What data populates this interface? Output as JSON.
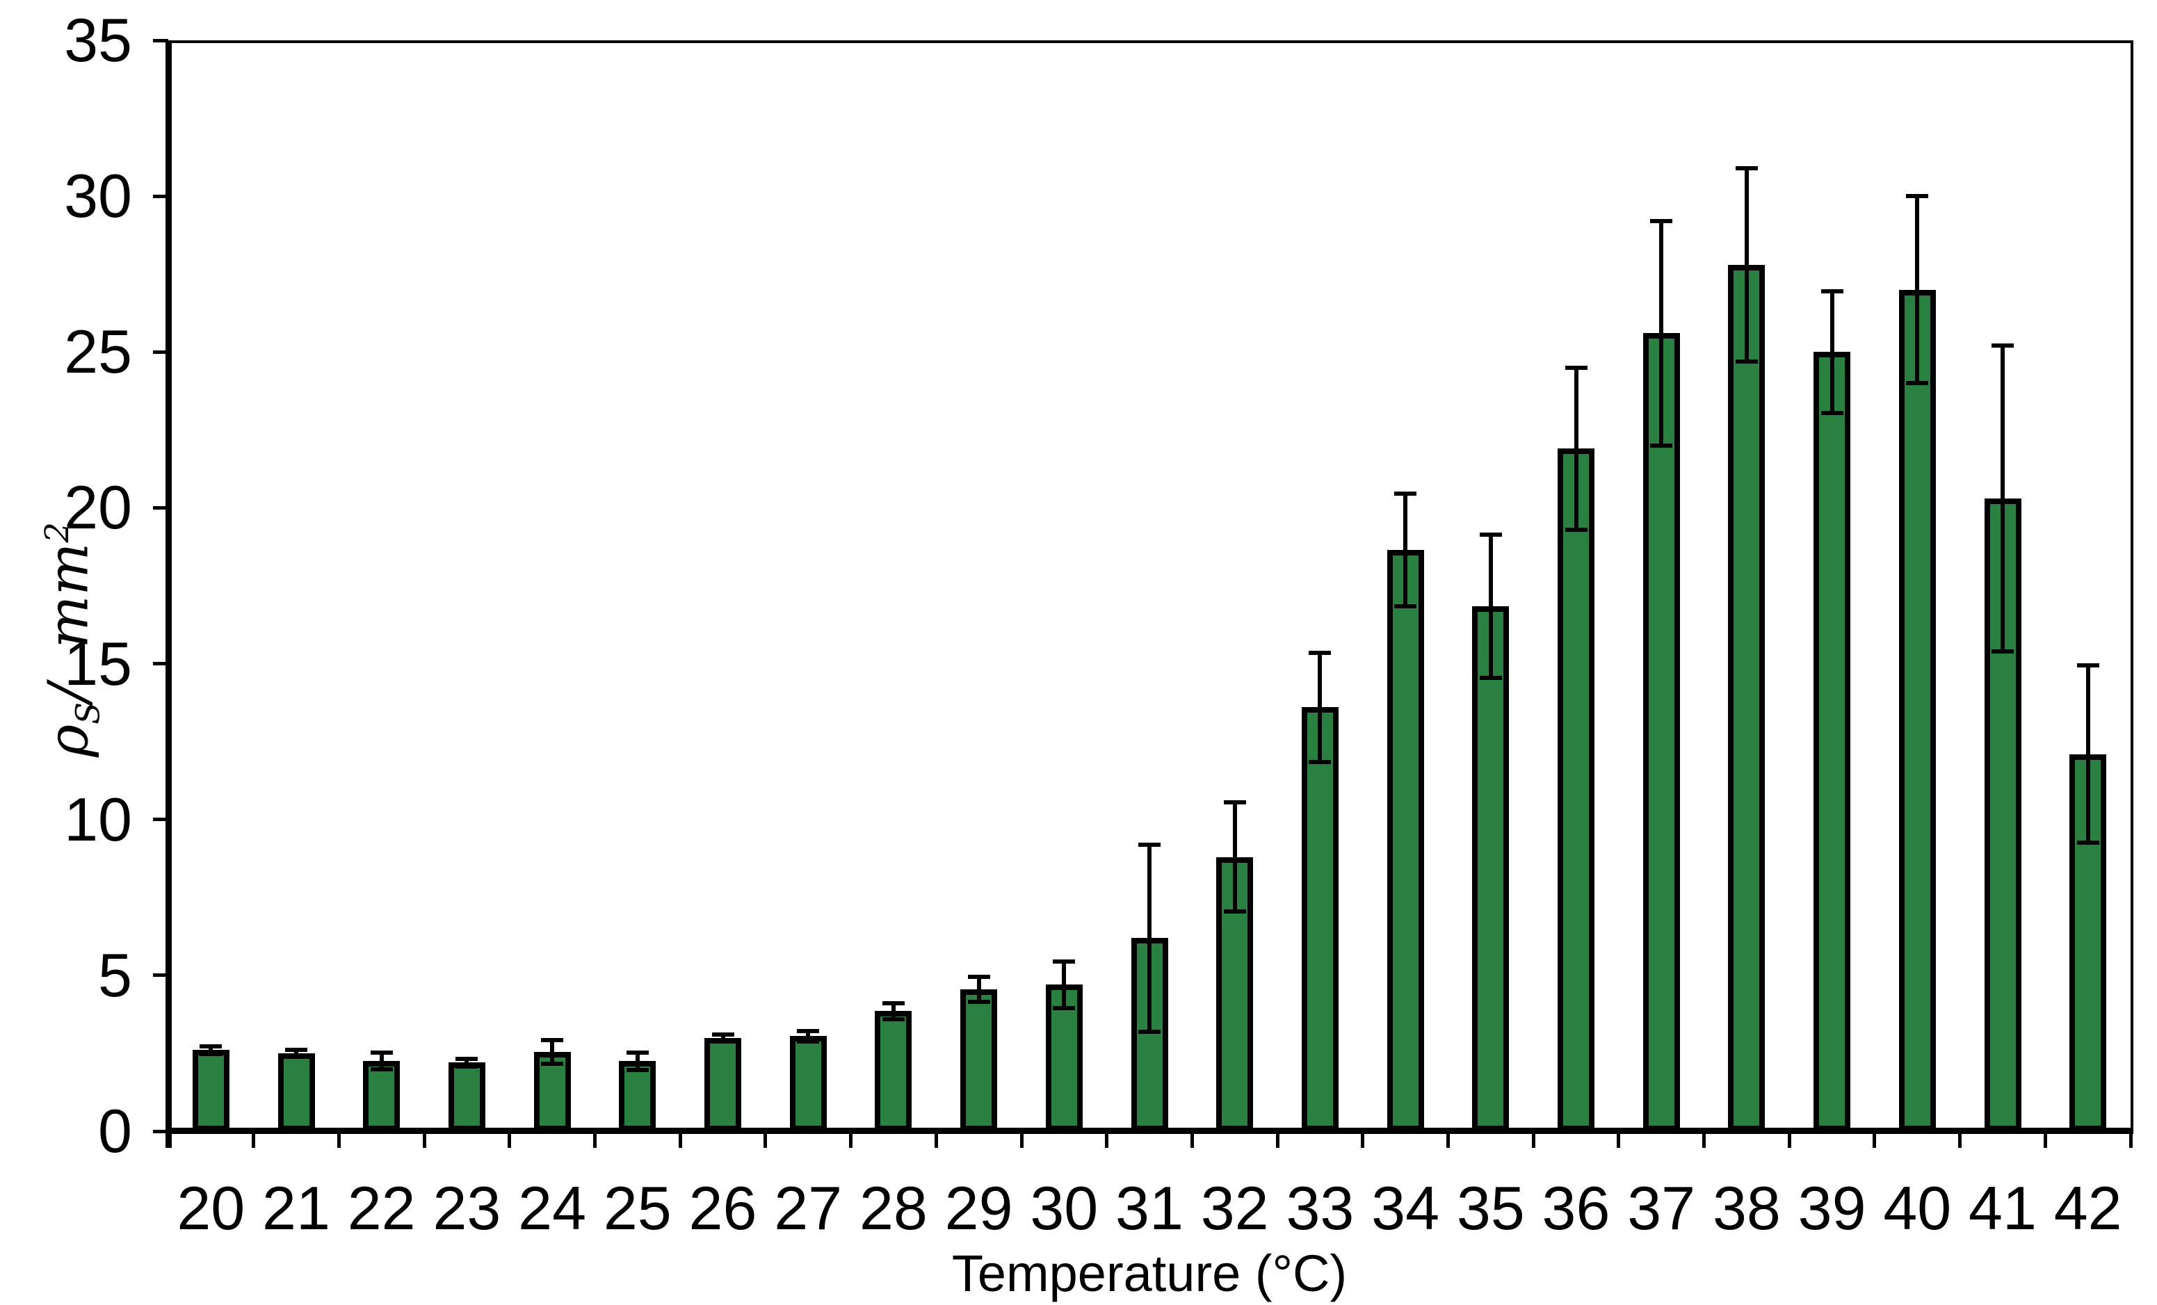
{
  "chart_data": {
    "type": "bar",
    "title": "",
    "xlabel": "Temperature (°C)",
    "ylabel": "ρS/ mm²",
    "ylabel_parts": {
      "symbol": "ρ",
      "subscript": "S",
      "separator": "/",
      "unit": "mm",
      "unit_exponent": "2"
    },
    "categories": [
      20,
      21,
      22,
      23,
      24,
      25,
      26,
      27,
      28,
      29,
      30,
      31,
      32,
      33,
      34,
      35,
      36,
      37,
      38,
      39,
      40,
      41,
      42
    ],
    "values": [
      2.6,
      2.5,
      2.25,
      2.2,
      2.55,
      2.25,
      3.0,
      3.05,
      3.85,
      4.55,
      4.7,
      6.2,
      8.8,
      13.6,
      18.65,
      16.85,
      21.9,
      25.6,
      27.8,
      25.0,
      27.0,
      20.3,
      12.1
    ],
    "errors": [
      0.12,
      0.1,
      0.27,
      0.12,
      0.38,
      0.28,
      0.1,
      0.17,
      0.26,
      0.41,
      0.74,
      3.0,
      1.75,
      1.75,
      1.8,
      2.3,
      2.6,
      3.6,
      3.1,
      1.95,
      3.0,
      4.9,
      2.85
    ],
    "ylim": [
      0,
      35
    ],
    "yticks": [
      0,
      5,
      10,
      15,
      20,
      25,
      30,
      35
    ],
    "grid": false,
    "legend_position": "none",
    "bar_color": "#2a8040",
    "bar_border_color": "#000000",
    "error_bar_color": "#000000",
    "axis_color": "#000000",
    "background_color": "#ffffff",
    "text_color": "#000000"
  }
}
